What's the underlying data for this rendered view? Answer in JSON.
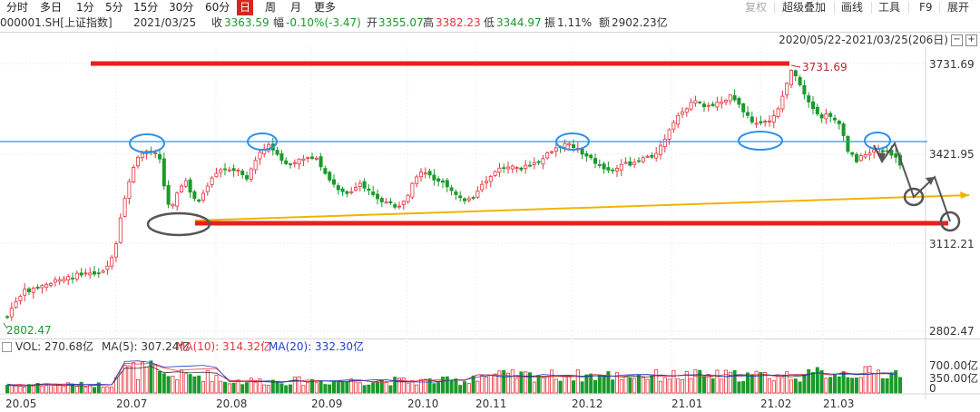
{
  "toolbar": {
    "periods": [
      "分时",
      "多日",
      "1分",
      "5分",
      "15分",
      "30分",
      "60分",
      "日",
      "周",
      "月",
      "更多"
    ],
    "active_period": "日",
    "right_items": [
      "复权",
      "超级叠加",
      "画线",
      "工具",
      "F9",
      "展开"
    ],
    "expand_arrow": "chevron-up-icon"
  },
  "info": {
    "code_name": "000001.SH[上证指数]",
    "date": "2021/03/25",
    "close_label": "收",
    "close_value": "3363.59",
    "change_label": "幅",
    "change_value": "-0.10%(-3.47)",
    "open_label": "开",
    "open_value": "3355.07",
    "high_label": "高",
    "high_value": "3382.23",
    "low_label": "低",
    "low_value": "3344.97",
    "amplitude_label": "振",
    "amplitude_value": "1.11%",
    "amount_label": "额",
    "amount_value": "2902.23亿"
  },
  "range": {
    "text": "2020/05/22-2021/03/25(206日)"
  },
  "volume_info": {
    "vol": "VOL: 270.68亿",
    "ma5": "MA(5): 307.24亿",
    "ma10": "MA(10): 314.32亿",
    "ma20": "MA(20): 332.30亿"
  },
  "colors": {
    "up": "#e8323c",
    "down": "#1a9a2a",
    "ma5": "#333333",
    "ma10": "#e8323c",
    "ma20": "#2040c8",
    "trend_red": "#e8201a",
    "trend_yellow": "#f0b400",
    "trend_blue": "#3090e8",
    "active_tab": "#d8261b"
  },
  "chart_data": {
    "type": "candlestick",
    "price_axis": {
      "ticks": [
        "3731.69",
        "3421.95",
        "3112.21",
        "2802.47"
      ],
      "range": [
        2802.47,
        3731.69
      ]
    },
    "volume_axis": {
      "ticks": [
        "700.00亿",
        "350.00亿",
        "0"
      ]
    },
    "x_ticks": [
      "20.05",
      "20.07",
      "20.08",
      "20.09",
      "20.10",
      "20.11",
      "20.12",
      "21.01",
      "21.02",
      "21.03"
    ],
    "annotations": {
      "high_label": "3731.69",
      "low_label": "2802.47"
    },
    "resistance_level": 3421.95,
    "overlays": [
      "upper-red-line",
      "resistance-blue-line",
      "yellow-support-line",
      "lower-red-line",
      "blue-circles",
      "gray-circles",
      "gray-projection-arrows"
    ]
  }
}
